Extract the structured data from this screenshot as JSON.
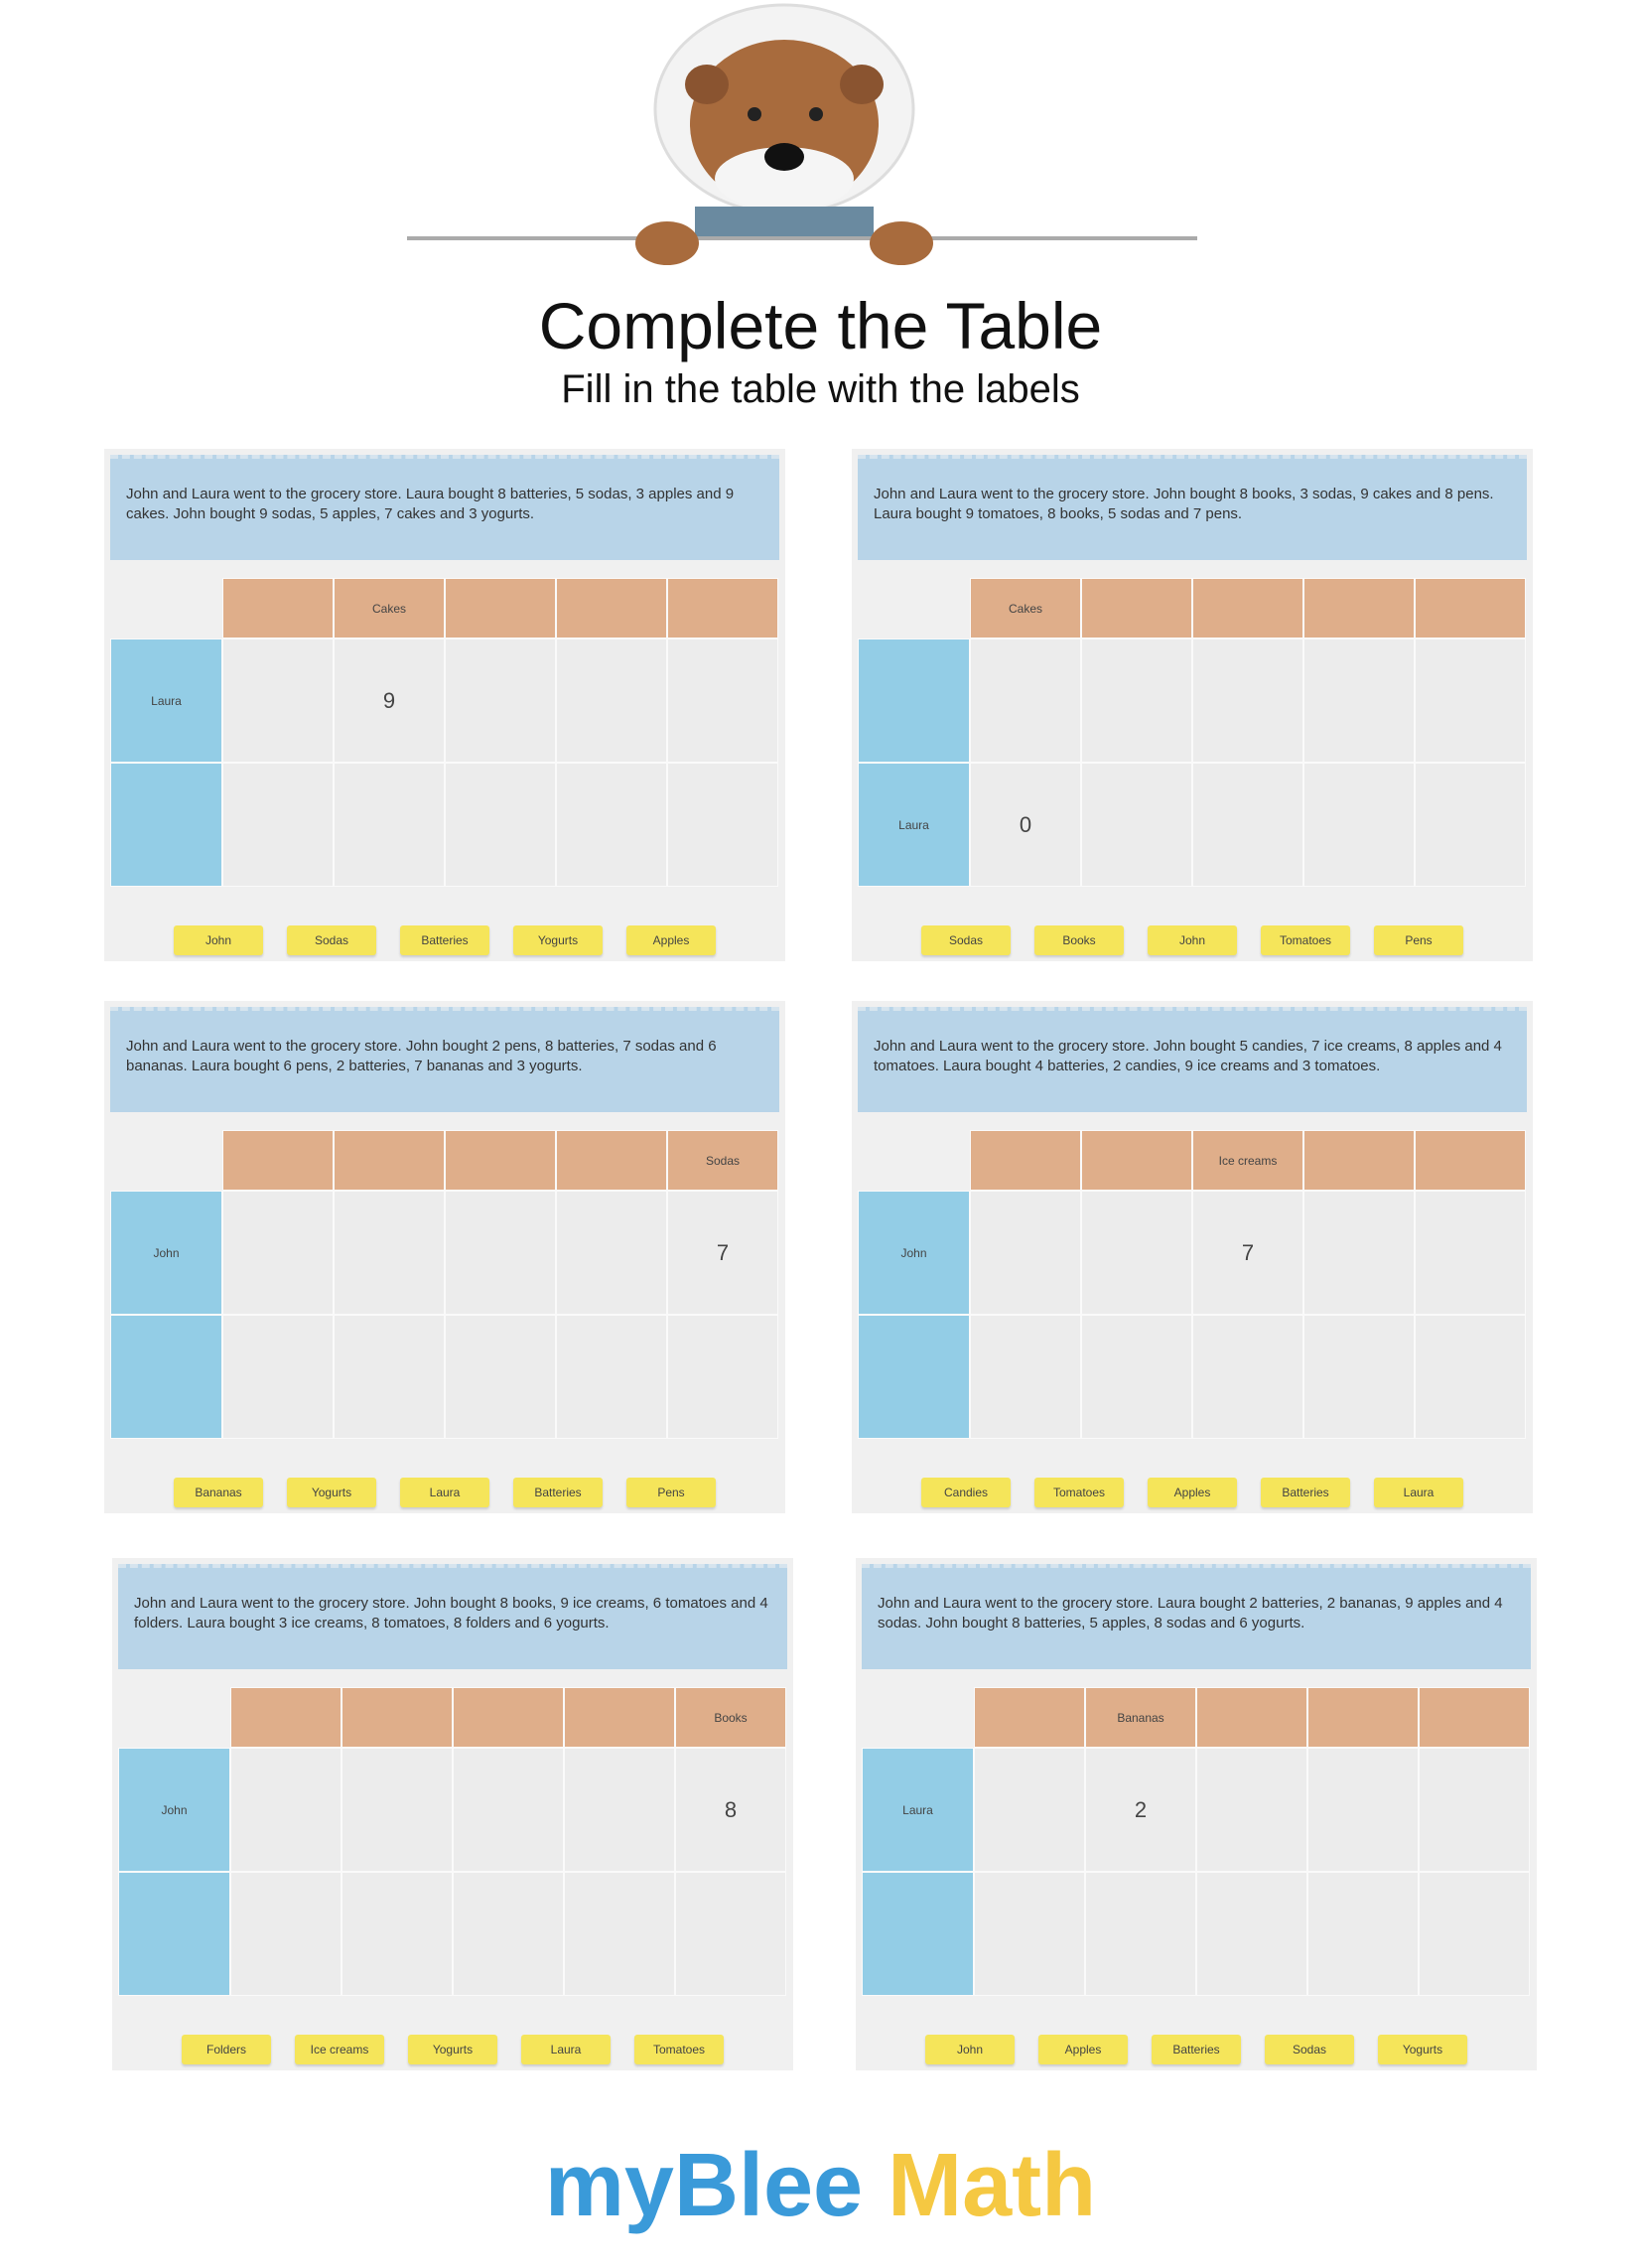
{
  "header": {
    "title": "Complete the Table",
    "subtitle": "Fill in the table with the labels"
  },
  "panels": [
    {
      "story": "John and Laura went to the grocery store. Laura bought 8 batteries, 5 sodas, 3 apples and 9 cakes. John bought 9 sodas, 5 apples, 7 cakes and 3 yogurts.",
      "column_headers": [
        null,
        "Cakes",
        null,
        null,
        null
      ],
      "row_headers": [
        "Laura",
        null
      ],
      "cells": [
        [
          null,
          9,
          null,
          null,
          null
        ],
        [
          null,
          null,
          null,
          null,
          null
        ]
      ],
      "labels": [
        "John",
        "Sodas",
        "Batteries",
        "Yogurts",
        "Apples"
      ]
    },
    {
      "story": "John and Laura went to the grocery store. John bought 8 books, 3 sodas, 9 cakes and 8 pens. Laura bought 9 tomatoes, 8 books, 5 sodas and 7 pens.",
      "column_headers": [
        "Cakes",
        null,
        null,
        null,
        null
      ],
      "row_headers": [
        null,
        "Laura"
      ],
      "cells": [
        [
          null,
          null,
          null,
          null,
          null
        ],
        [
          0,
          null,
          null,
          null,
          null
        ]
      ],
      "labels": [
        "Sodas",
        "Books",
        "John",
        "Tomatoes",
        "Pens"
      ]
    },
    {
      "story": "John and Laura went to the grocery store. John bought 2 pens, 8 batteries, 7 sodas and 6 bananas. Laura bought 6 pens, 2 batteries, 7 bananas and 3 yogurts.",
      "column_headers": [
        null,
        null,
        null,
        null,
        "Sodas"
      ],
      "row_headers": [
        "John",
        null
      ],
      "cells": [
        [
          null,
          null,
          null,
          null,
          7
        ],
        [
          null,
          null,
          null,
          null,
          null
        ]
      ],
      "labels": [
        "Bananas",
        "Yogurts",
        "Laura",
        "Batteries",
        "Pens"
      ]
    },
    {
      "story": "John and Laura went to the grocery store. John bought 5 candies, 7 ice creams, 8 apples and 4 tomatoes. Laura bought 4 batteries, 2 candies, 9 ice creams and 3 tomatoes.",
      "column_headers": [
        null,
        null,
        "Ice creams",
        null,
        null
      ],
      "row_headers": [
        "John",
        null
      ],
      "cells": [
        [
          null,
          null,
          7,
          null,
          null
        ],
        [
          null,
          null,
          null,
          null,
          null
        ]
      ],
      "labels": [
        "Candies",
        "Tomatoes",
        "Apples",
        "Batteries",
        "Laura"
      ]
    },
    {
      "story": "John and Laura went to the grocery store. John bought 8 books, 9 ice creams, 6 tomatoes and 4 folders. Laura bought 3 ice creams, 8 tomatoes, 8 folders and 6 yogurts.",
      "column_headers": [
        null,
        null,
        null,
        null,
        "Books"
      ],
      "row_headers": [
        "John",
        null
      ],
      "cells": [
        [
          null,
          null,
          null,
          null,
          8
        ],
        [
          null,
          null,
          null,
          null,
          null
        ]
      ],
      "labels": [
        "Folders",
        "Ice creams",
        "Yogurts",
        "Laura",
        "Tomatoes"
      ]
    },
    {
      "story": "John and Laura went to the grocery store. Laura bought 2 batteries, 2 bananas, 9 apples and 4 sodas. John bought 8 batteries, 5 apples, 8 sodas and 6 yogurts.",
      "column_headers": [
        null,
        "Bananas",
        null,
        null,
        null
      ],
      "row_headers": [
        "Laura",
        null
      ],
      "cells": [
        [
          null,
          2,
          null,
          null,
          null
        ],
        [
          null,
          null,
          null,
          null,
          null
        ]
      ],
      "labels": [
        "John",
        "Apples",
        "Batteries",
        "Sodas",
        "Yogurts"
      ]
    }
  ],
  "footer": {
    "brand_first": "myBlee",
    "brand_second": "Math"
  }
}
